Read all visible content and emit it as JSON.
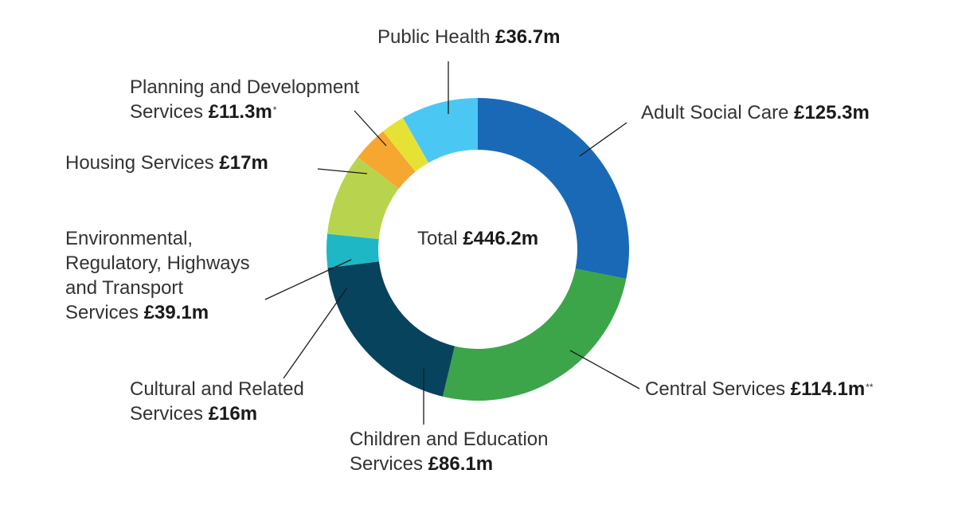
{
  "chart_data": {
    "type": "pie",
    "variant": "donut",
    "center_label": {
      "prefix": "Total ",
      "value": "£446.2m"
    },
    "slices": [
      {
        "name": "Adult Social Care",
        "value": 125.3,
        "value_label": "£125.3m",
        "note": "",
        "color": "#1a69b6"
      },
      {
        "name": "Central Services",
        "value": 114.1,
        "value_label": "£114.1m",
        "note": "**",
        "color": "#3ca54a"
      },
      {
        "name": "Children and Education Services",
        "value": 86.1,
        "value_label": "£86.1m",
        "note": "",
        "color": "#08435e"
      },
      {
        "name": "Cultural and Related Services",
        "value": 16,
        "value_label": "£16m",
        "note": "",
        "color": "#1db7c5"
      },
      {
        "name": "Environmental, Regulatory, Highways and Transport Services",
        "value": 39.1,
        "value_label": "£39.1m",
        "note": "",
        "color": "#b8d44e"
      },
      {
        "name": "Housing Services",
        "value": 17,
        "value_label": "£17m",
        "note": "",
        "color": "#f6a730"
      },
      {
        "name": "Planning and Development Services",
        "value": 11.3,
        "value_label": "£11.3m",
        "note": "*",
        "color": "#e6e235"
      },
      {
        "name": "Public Health",
        "value": 36.7,
        "value_label": "£36.7m",
        "note": "",
        "color": "#4ac8f3"
      }
    ]
  },
  "labels": {
    "adult": {
      "name": "Adult Social Care ",
      "value": "£125.3m"
    },
    "central": {
      "name": "Central Services ",
      "value": "£114.1m",
      "note": "**"
    },
    "children": {
      "line1": "Children and Education",
      "line2": "Services ",
      "value": "£86.1m"
    },
    "cultural": {
      "line1": "Cultural and Related",
      "line2": "Services ",
      "value": "£16m"
    },
    "environmental": {
      "line1": "Environmental,",
      "line2": "Regulatory, Highways",
      "line3": "and Transport",
      "line4": "Services ",
      "value": "£39.1m"
    },
    "housing": {
      "name": "Housing Services ",
      "value": "£17m"
    },
    "planning": {
      "line1": "Planning and Development",
      "line2": "Services ",
      "value": "£11.3m",
      "note": "*"
    },
    "public_health": {
      "name": "Public Health ",
      "value": "£36.7m"
    }
  }
}
